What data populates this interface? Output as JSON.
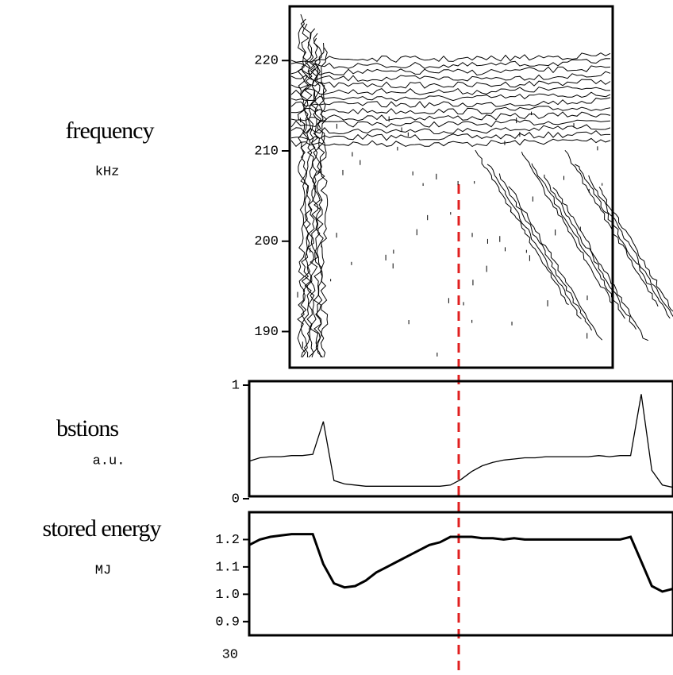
{
  "chart_data": [
    {
      "type": "contour",
      "ylabel": "frequency",
      "yunit": "kHz",
      "ylim": [
        186,
        226
      ],
      "yticks": [
        190,
        200,
        210,
        220
      ],
      "color": "#000000"
    },
    {
      "type": "line",
      "ylabel": "bstions",
      "yunit": "a.u.",
      "xlim": [
        30,
        40
      ],
      "ylim": [
        0,
        1
      ],
      "yticks": [
        0,
        1
      ],
      "color": "#000000",
      "x": [
        30,
        30.25,
        30.5,
        30.75,
        31,
        31.25,
        31.5,
        31.75,
        32,
        32.25,
        32.5,
        32.75,
        33,
        33.25,
        33.5,
        33.75,
        34,
        34.25,
        34.5,
        34.75,
        35,
        35.25,
        35.5,
        35.75,
        36,
        36.25,
        36.5,
        36.75,
        37,
        37.25,
        37.5,
        37.75,
        38,
        38.25,
        38.5,
        38.75,
        39,
        39.25,
        39.5,
        39.75,
        40
      ],
      "values": [
        0.33,
        0.36,
        0.37,
        0.37,
        0.38,
        0.38,
        0.39,
        0.68,
        0.16,
        0.13,
        0.12,
        0.11,
        0.11,
        0.11,
        0.11,
        0.11,
        0.11,
        0.11,
        0.11,
        0.12,
        0.17,
        0.24,
        0.29,
        0.32,
        0.34,
        0.35,
        0.36,
        0.36,
        0.37,
        0.37,
        0.37,
        0.37,
        0.37,
        0.38,
        0.37,
        0.38,
        0.38,
        0.92,
        0.25,
        0.12,
        0.1
      ]
    },
    {
      "type": "line",
      "ylabel": "stored energy",
      "yunit": "MJ",
      "xlim": [
        30,
        40
      ],
      "ylim": [
        0.85,
        1.3
      ],
      "xticks": [
        30
      ],
      "yticks": [
        0.9,
        {
          "value": 1,
          "label": "1.0"
        },
        1.1,
        1.2
      ],
      "color": "#000000",
      "x": [
        30,
        30.25,
        30.5,
        30.75,
        31,
        31.25,
        31.5,
        31.75,
        32,
        32.25,
        32.5,
        32.75,
        33,
        33.25,
        33.5,
        33.75,
        34,
        34.25,
        34.5,
        34.75,
        35,
        35.25,
        35.5,
        35.75,
        36,
        36.25,
        36.5,
        36.75,
        37,
        37.25,
        37.5,
        37.75,
        38,
        38.25,
        38.5,
        38.75,
        39,
        39.25,
        39.5,
        39.75,
        40
      ],
      "values": [
        1.18,
        1.2,
        1.21,
        1.215,
        1.22,
        1.22,
        1.22,
        1.11,
        1.04,
        1.025,
        1.03,
        1.05,
        1.08,
        1.1,
        1.12,
        1.14,
        1.16,
        1.18,
        1.19,
        1.21,
        1.21,
        1.21,
        1.205,
        1.205,
        1.2,
        1.205,
        1.2,
        1.2,
        1.2,
        1.2,
        1.2,
        1.2,
        1.2,
        1.2,
        1.2,
        1.2,
        1.21,
        1.12,
        1.03,
        1.01,
        1.02
      ]
    }
  ]
}
